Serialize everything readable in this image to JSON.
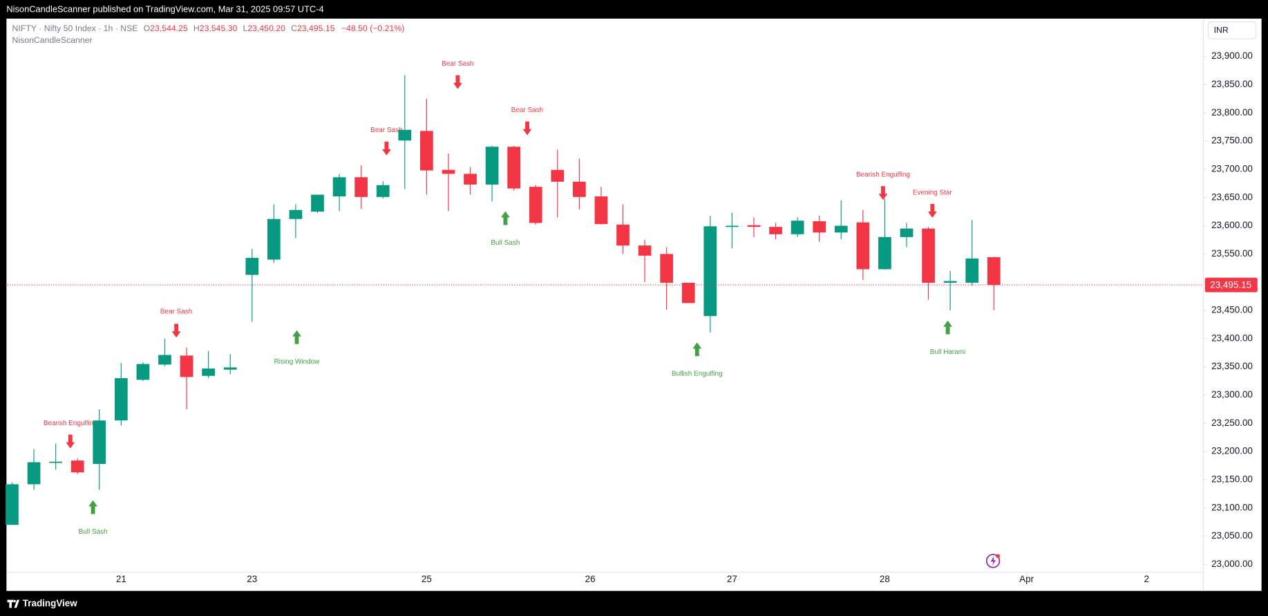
{
  "chart_data": {
    "type": "candlestick",
    "published": "NisonCandleScanner published on TradingView.com, Mar 31, 2025 09:57 UTC-4",
    "symbol": "NIFTY · Nifty 50 Index · 1h · NSE",
    "ohlc_names": [
      "O",
      "H",
      "L",
      "C"
    ],
    "ohlc_labels": [
      "23,544.25",
      "23,545.30",
      "23,450.20",
      "23,495.15"
    ],
    "change": "−48.50 (−0.21%)",
    "indicator": "NisonCandleScanner",
    "currency": "INR",
    "footer": "TradingView",
    "up_color": "#089981",
    "down_color": "#f23645",
    "open": [
      23070,
      23142,
      23181,
      23184,
      23178,
      23255,
      23327,
      23354,
      23370,
      23334,
      23345,
      23513,
      23540,
      23612,
      23625,
      23652,
      23686,
      23651,
      23751,
      23768,
      23699,
      23692,
      23673,
      23740,
      23669,
      23699,
      23678,
      23652,
      23602,
      23565,
      23550,
      23499,
      23440,
      23598,
      23601,
      23598,
      23585,
      23608,
      23588,
      23606,
      23523,
      23580,
      23595,
      23499,
      23499,
      23544.25
    ],
    "high": [
      23145,
      23204,
      23214,
      23188,
      23275,
      23357,
      23358,
      23400,
      23384,
      23378,
      23373,
      23559,
      23638,
      23638,
      23655,
      23692,
      23707,
      23679,
      23867,
      23825,
      23728,
      23704,
      23742,
      23742,
      23672,
      23735,
      23719,
      23669,
      23638,
      23575,
      23562,
      23499,
      23618,
      23623,
      23615,
      23605,
      23615,
      23618,
      23645,
      23628,
      23648,
      23605,
      23598,
      23520,
      23610,
      23545.3
    ],
    "low": [
      23070,
      23132,
      23168,
      23160,
      23132,
      23246,
      23325,
      23351,
      23275,
      23330,
      23337,
      23430,
      23534,
      23578,
      23623,
      23626,
      23630,
      23648,
      23665,
      23655,
      23626,
      23655,
      23643,
      23662,
      23602,
      23615,
      23629,
      23602,
      23550,
      23500,
      23451,
      23463,
      23411,
      23560,
      23580,
      23576,
      23580,
      23572,
      23576,
      23504,
      23522,
      23562,
      23469,
      23450,
      23494,
      23450.2
    ],
    "close": [
      23142,
      23181,
      23182,
      23163,
      23255,
      23330,
      23355,
      23371,
      23332,
      23347,
      23349,
      23543,
      23612,
      23628,
      23655,
      23686,
      23651,
      23672,
      23770,
      23698,
      23692,
      23673,
      23740,
      23666,
      23605,
      23678,
      23651,
      23603,
      23565,
      23547,
      23499,
      23463,
      23599,
      23600,
      23598,
      23585,
      23609,
      23588,
      23600,
      23523,
      23580,
      23595,
      23499,
      23502,
      23542,
      23495.15
    ],
    "last_price": {
      "value": 23495.15,
      "label": "23,495.15"
    },
    "xlim": [
      -0.22,
      54.6
    ],
    "xticks": [
      {
        "value": 5,
        "label": "21"
      },
      {
        "value": 11,
        "label": "23"
      },
      {
        "value": 19,
        "label": "25"
      },
      {
        "value": 26.5,
        "label": "26"
      },
      {
        "value": 33,
        "label": "27"
      },
      {
        "value": 40,
        "label": "28"
      },
      {
        "value": 46.5,
        "label": "Apr"
      },
      {
        "value": 52,
        "label": "2"
      }
    ],
    "ylim": [
      22953,
      23967
    ],
    "yticks": [
      {
        "value": 23000,
        "label": "23,000.00"
      },
      {
        "value": 23050,
        "label": "23,050.00"
      },
      {
        "value": 23100,
        "label": "23,100.00"
      },
      {
        "value": 23150,
        "label": "23,150.00"
      },
      {
        "value": 23200,
        "label": "23,200.00"
      },
      {
        "value": 23250,
        "label": "23,250.00"
      },
      {
        "value": 23300,
        "label": "23,300.00"
      },
      {
        "value": 23350,
        "label": "23,350.00"
      },
      {
        "value": 23400,
        "label": "23,400.00"
      },
      {
        "value": 23450,
        "label": "23,450.00"
      },
      {
        "value": 23500,
        "label": "23,500.00"
      },
      {
        "value": 23550,
        "label": "23,550.00"
      },
      {
        "value": 23600,
        "label": "23,600.00"
      },
      {
        "value": 23650,
        "label": "23,650.00"
      },
      {
        "value": 23700,
        "label": "23,700.00"
      },
      {
        "value": 23750,
        "label": "23,750.00"
      },
      {
        "value": 23800,
        "label": "23,800.00"
      },
      {
        "value": 23850,
        "label": "23,850.00"
      },
      {
        "value": 23900,
        "label": "23,900.00"
      }
    ],
    "annotations": [
      {
        "text": "Bearish Engulfing"
      },
      {
        "text": "Bull Sash"
      },
      {
        "text": "Bear Sash"
      },
      {
        "text": "Rising Window"
      },
      {
        "text": "Bear Sash"
      },
      {
        "text": "Bear Sash"
      },
      {
        "text": "Bull Sash"
      },
      {
        "text": "Bear Sash"
      },
      {
        "text": "Bullish Engulfing"
      },
      {
        "text": "Bearish Engulfing"
      },
      {
        "text": "Evening Star"
      },
      {
        "text": "Bull Harami"
      }
    ]
  }
}
